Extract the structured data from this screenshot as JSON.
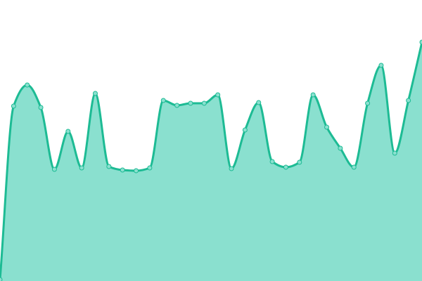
{
  "chart_data": {
    "type": "area",
    "title": "",
    "xlabel": "",
    "ylabel": "",
    "x": [
      0,
      1,
      2,
      3,
      4,
      5,
      6,
      7,
      8,
      9,
      10,
      11,
      12,
      13,
      14,
      15,
      16,
      17,
      18,
      19,
      20,
      21,
      22,
      23,
      24,
      25,
      26,
      27,
      28,
      29,
      30,
      31
    ],
    "values": [
      2,
      249,
      279,
      247,
      159,
      213,
      161,
      267,
      163,
      158,
      157,
      161,
      257,
      250,
      253,
      253,
      265,
      160,
      215,
      254,
      170,
      162,
      169,
      265,
      219,
      189,
      162,
      253,
      307,
      182,
      257,
      340
    ],
    "ylim": [
      0,
      400
    ],
    "grid": false,
    "axes_visible": false,
    "markers": true,
    "smooth": true,
    "colors": {
      "line": "#1dbb94",
      "fill": "#8ae0cf",
      "marker_fill": "#8ae0cf"
    }
  }
}
